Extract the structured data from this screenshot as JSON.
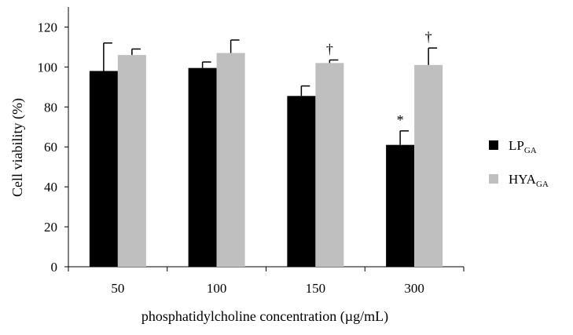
{
  "chart_data": {
    "type": "bar",
    "title": "",
    "xlabel": "phosphatidylcholine concentration (µg/mL)",
    "ylabel": "Cell viability (%)",
    "ylim": [
      0,
      130
    ],
    "yticks": [
      0,
      20,
      40,
      60,
      80,
      100,
      120
    ],
    "ytick_labels": [
      "0",
      "20",
      "40",
      "60",
      "80",
      "100",
      "120"
    ],
    "categories": [
      "50",
      "100",
      "150",
      "300"
    ],
    "series": [
      {
        "name": "LP",
        "subscript": "GA",
        "color": "#000000",
        "values": [
          98,
          99.5,
          85.5,
          61
        ],
        "errors": [
          14,
          3,
          5,
          7
        ],
        "annotations": [
          "",
          "",
          "",
          "*"
        ]
      },
      {
        "name": "HYA",
        "subscript": "GA",
        "color": "#bfbfbf",
        "values": [
          106,
          107,
          102,
          101
        ],
        "errors": [
          3,
          6.5,
          1.5,
          8.5
        ],
        "annotations": [
          "",
          "",
          "†",
          "†"
        ]
      }
    ],
    "legend_position": "right",
    "grid": false
  }
}
